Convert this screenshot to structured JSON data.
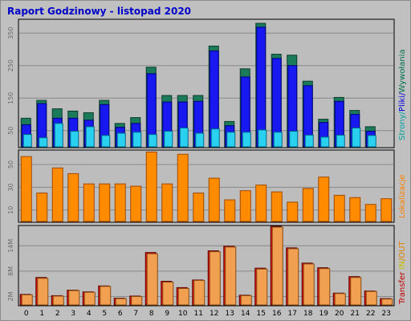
{
  "title": "Raport Godzinowy -  listopad 2020",
  "colors": {
    "background": "#c0c0c0",
    "plot_background": "#bdbdbd",
    "grid": "#8a8a8a",
    "wyw_fill": "#1a7a5a",
    "wyw_stroke": "#0b3d2b",
    "pliki_fill": "#1818f0",
    "pliki_stroke": "#00007a",
    "strony_fill": "#2ad0f0",
    "strony_stroke": "#006a8a",
    "lok_fill": "#ff8c00",
    "lok_stroke": "#a04800",
    "out_fill": "#f0a050",
    "out_stroke": "#8a4a10",
    "in_fill": "#e01010",
    "in_stroke": "#600000",
    "title": "#0000c8",
    "side_strony": "#00a0a0",
    "side_pliki": "#0000e0",
    "side_wyw": "#007050",
    "side_lok": "#ff8000",
    "side_transfer": "#c00000",
    "side_in": "#c0c000",
    "side_out": "#e08000"
  },
  "chart_data": [
    {
      "type": "bar",
      "categories": [
        "0",
        "1",
        "2",
        "3",
        "4",
        "5",
        "6",
        "7",
        "8",
        "9",
        "10",
        "11",
        "12",
        "13",
        "14",
        "15",
        "16",
        "17",
        "18",
        "19",
        "20",
        "21",
        "22",
        "23"
      ],
      "ylim": [
        0,
        390
      ],
      "yticks": [
        "50",
        "150",
        "250",
        "350"
      ],
      "side_label": {
        "strony": "Strony",
        "sep1": "/",
        "pliki": "Pliki",
        "sep2": "/",
        "wyw": "Wywołania"
      },
      "series": [
        {
          "name": "Wywołania",
          "values": [
            88,
            143,
            117,
            110,
            105,
            143,
            72,
            90,
            245,
            158,
            158,
            158,
            310,
            78,
            240,
            380,
            285,
            282,
            202,
            85,
            152,
            112,
            62,
            0
          ]
        },
        {
          "name": "Pliki",
          "values": [
            68,
            133,
            88,
            88,
            82,
            130,
            60,
            72,
            225,
            138,
            138,
            140,
            295,
            65,
            215,
            368,
            272,
            250,
            188,
            75,
            140,
            100,
            48,
            0
          ]
        },
        {
          "name": "Strony",
          "values": [
            38,
            28,
            72,
            48,
            62,
            35,
            42,
            45,
            38,
            48,
            58,
            42,
            55,
            45,
            45,
            52,
            45,
            48,
            36,
            30,
            36,
            58,
            35,
            0
          ]
        }
      ]
    },
    {
      "type": "bar",
      "categories": [
        "0",
        "1",
        "2",
        "3",
        "4",
        "5",
        "6",
        "7",
        "8",
        "9",
        "10",
        "11",
        "12",
        "13",
        "14",
        "15",
        "16",
        "17",
        "18",
        "19",
        "20",
        "21",
        "22",
        "23"
      ],
      "ylim": [
        0,
        62
      ],
      "yticks": [
        "10",
        "30",
        "50"
      ],
      "side_label": {
        "lok": "Lokalizacje"
      },
      "series": [
        {
          "name": "Lokalizacje",
          "values": [
            57,
            25,
            47,
            42,
            33,
            33,
            33,
            31,
            61,
            33,
            59,
            25,
            38,
            19,
            27,
            32,
            26,
            17,
            29,
            39,
            23,
            21,
            15,
            20
          ]
        }
      ]
    },
    {
      "type": "bar",
      "categories": [
        "0",
        "1",
        "2",
        "3",
        "4",
        "5",
        "6",
        "7",
        "8",
        "9",
        "10",
        "11",
        "12",
        "13",
        "14",
        "15",
        "16",
        "17",
        "18",
        "19",
        "20",
        "21",
        "22",
        "23"
      ],
      "ylim": [
        0,
        18.6
      ],
      "yticks": [
        "2M",
        "8M",
        "14M"
      ],
      "side_label": {
        "transfer": "Transfer",
        "sep1": " ",
        "in": "IN",
        "sep2": "/",
        "out": "OUT"
      },
      "series": [
        {
          "name": "IN",
          "values": [
            2.5,
            6.5,
            2.2,
            3.5,
            3.1,
            4.5,
            1.6,
            2.1,
            12.4,
            5.6,
            4.1,
            5.9,
            12.8,
            13.9,
            2.3,
            8.7,
            18.6,
            13.5,
            9.9,
            8.8,
            2.8,
            6.7,
            3.3,
            1.5
          ]
        },
        {
          "name": "OUT",
          "values": [
            2.4,
            6.3,
            2.1,
            3.4,
            3.0,
            4.4,
            1.5,
            2.0,
            12.1,
            5.4,
            3.9,
            5.8,
            12.6,
            13.7,
            2.2,
            8.5,
            18.4,
            13.3,
            9.7,
            8.6,
            2.7,
            6.5,
            3.2,
            1.4
          ]
        }
      ]
    }
  ]
}
